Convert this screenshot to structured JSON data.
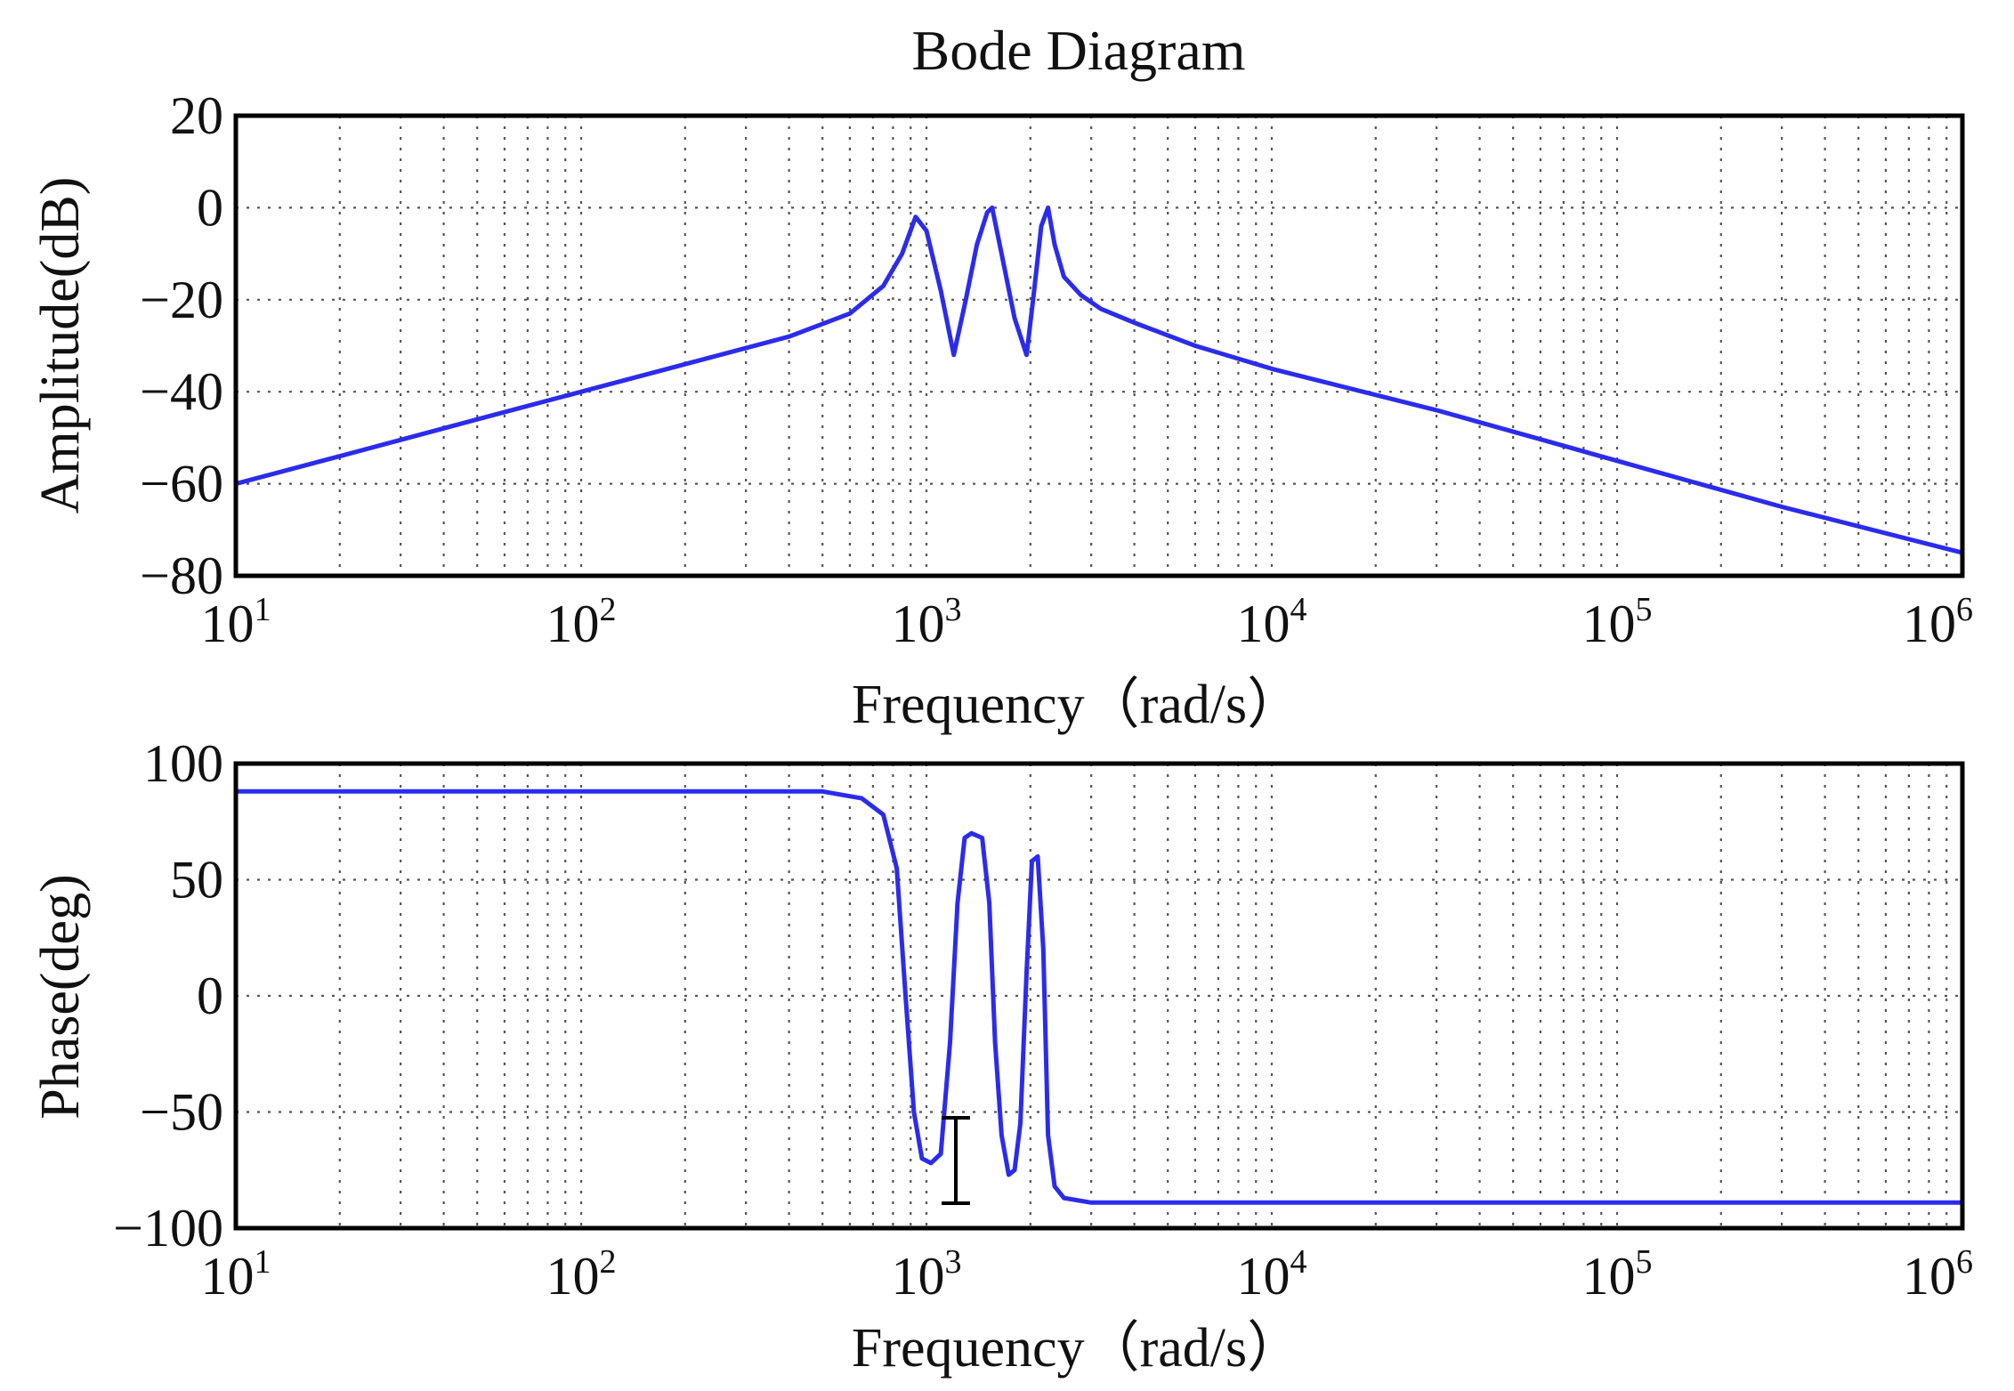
{
  "chart_data": [
    {
      "type": "line",
      "title": "Bode Diagram",
      "xlabel": "Frequency（rad/s）",
      "ylabel": "Amplitude(dB)",
      "xscale": "log",
      "xlim": [
        10,
        1000000
      ],
      "ylim": [
        -80,
        20
      ],
      "x_ticks": [
        {
          "value": 10,
          "base": "10",
          "exp": "1"
        },
        {
          "value": 100,
          "base": "10",
          "exp": "2"
        },
        {
          "value": 1000,
          "base": "10",
          "exp": "3"
        },
        {
          "value": 10000,
          "base": "10",
          "exp": "4"
        },
        {
          "value": 100000,
          "base": "10",
          "exp": "5"
        },
        {
          "value": 1000000,
          "base": "10",
          "exp": "6"
        }
      ],
      "y_ticks": [
        {
          "value": 20,
          "label": "20"
        },
        {
          "value": 0,
          "label": "0"
        },
        {
          "value": -20,
          "label": "−20"
        },
        {
          "value": -40,
          "label": "−40"
        },
        {
          "value": -60,
          "label": "−60"
        },
        {
          "value": -80,
          "label": "−80"
        }
      ],
      "grid": true,
      "series": [
        {
          "color": "#2b2bf0",
          "x": [
            10,
            20,
            50,
            100,
            200,
            400,
            600,
            750,
            850,
            930,
            1000,
            1100,
            1200,
            1300,
            1400,
            1500,
            1550,
            1650,
            1800,
            1950,
            2050,
            2150,
            2250,
            2350,
            2500,
            2800,
            3200,
            4000,
            6000,
            10000,
            30000,
            100000,
            300000,
            1000000
          ],
          "y": [
            -60,
            -54,
            -46,
            -40,
            -34,
            -28,
            -23,
            -17,
            -10,
            -2,
            -5,
            -18,
            -32,
            -20,
            -8,
            -1,
            0,
            -10,
            -24,
            -32,
            -18,
            -4,
            0,
            -8,
            -15,
            -19,
            -22,
            -25,
            -30,
            -35,
            -44,
            -55,
            -65,
            -75
          ]
        }
      ]
    },
    {
      "type": "line",
      "xlabel": "Frequency（rad/s）",
      "ylabel": "Phase(deg)",
      "xscale": "log",
      "xlim": [
        10,
        1000000
      ],
      "ylim": [
        -100,
        100
      ],
      "x_ticks": [
        {
          "value": 10,
          "base": "10",
          "exp": "1"
        },
        {
          "value": 100,
          "base": "10",
          "exp": "2"
        },
        {
          "value": 1000,
          "base": "10",
          "exp": "3"
        },
        {
          "value": 10000,
          "base": "10",
          "exp": "4"
        },
        {
          "value": 100000,
          "base": "10",
          "exp": "5"
        },
        {
          "value": 1000000,
          "base": "10",
          "exp": "6"
        }
      ],
      "y_ticks": [
        {
          "value": 100,
          "label": "100"
        },
        {
          "value": 50,
          "label": "50"
        },
        {
          "value": 0,
          "label": "0"
        },
        {
          "value": -50,
          "label": "−50"
        },
        {
          "value": -100,
          "label": "−100"
        }
      ],
      "grid": true,
      "series": [
        {
          "color": "#2b2bf0",
          "x": [
            10,
            100,
            500,
            650,
            750,
            820,
            870,
            920,
            970,
            1030,
            1100,
            1170,
            1230,
            1290,
            1350,
            1450,
            1520,
            1580,
            1650,
            1730,
            1800,
            1870,
            1950,
            2020,
            2100,
            2180,
            2250,
            2350,
            2500,
            3000,
            10000,
            100000,
            1000000
          ],
          "y": [
            88,
            88,
            88,
            85,
            78,
            55,
            0,
            -50,
            -70,
            -72,
            -68,
            -20,
            40,
            68,
            70,
            68,
            40,
            -20,
            -60,
            -77,
            -75,
            -55,
            10,
            58,
            60,
            20,
            -60,
            -82,
            -87,
            -89,
            -89,
            -89,
            -89
          ]
        }
      ]
    }
  ]
}
